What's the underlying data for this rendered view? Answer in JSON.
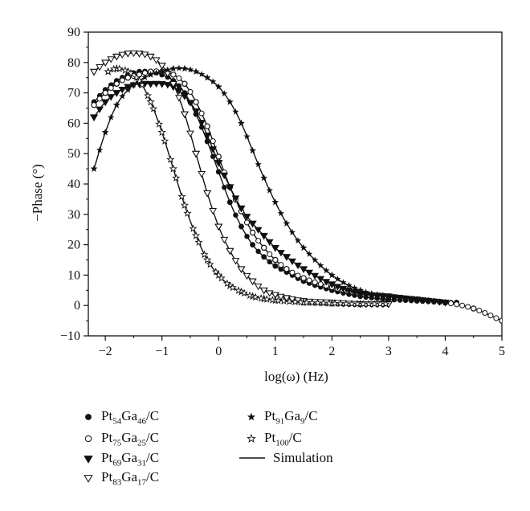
{
  "chart_data": {
    "type": "line",
    "title": "",
    "xlabel": "log(ω) (Hz)",
    "ylabel": "−Phase (°)",
    "xlim": [
      -2.3,
      5
    ],
    "ylim": [
      -10,
      90
    ],
    "xticks": [
      -2,
      -1,
      0,
      1,
      2,
      3,
      4,
      5
    ],
    "yticks": [
      -10,
      0,
      10,
      20,
      30,
      40,
      50,
      60,
      70,
      80,
      90
    ],
    "xtick_labels": [
      "−2",
      "−1",
      "0",
      "1",
      "2",
      "3",
      "4",
      "5"
    ],
    "ytick_labels": [
      "−10",
      "0",
      "10",
      "20",
      "30",
      "40",
      "50",
      "60",
      "70",
      "80",
      "90"
    ],
    "grid": false,
    "legend_placement": "below",
    "series": [
      {
        "name": "Pt54Ga46/C",
        "label_parts": [
          [
            "Pt",
            ""
          ],
          [
            "54",
            "sub"
          ],
          [
            "Ga",
            ""
          ],
          [
            "46",
            "sub"
          ],
          [
            "/C",
            ""
          ]
        ],
        "marker": "filled-circle",
        "x": [
          -2.2,
          -2.0,
          -1.8,
          -1.6,
          -1.4,
          -1.2,
          -1.0,
          -0.8,
          -0.6,
          -0.4,
          -0.2,
          0.0,
          0.2,
          0.4,
          0.6,
          0.8,
          1.0,
          1.2,
          1.5,
          2.0,
          2.5,
          3.0,
          3.5,
          4.0,
          4.2
        ],
        "y": [
          67,
          71,
          74,
          76,
          77,
          77,
          76,
          74,
          70,
          63,
          54,
          44,
          34,
          26,
          20,
          16,
          13,
          11,
          8,
          5,
          3,
          2,
          1.5,
          1,
          1
        ]
      },
      {
        "name": "Pt75Ga25/C",
        "label_parts": [
          [
            "Pt",
            ""
          ],
          [
            "75",
            "sub"
          ],
          [
            "Ga",
            ""
          ],
          [
            "25",
            "sub"
          ],
          [
            "/C",
            ""
          ]
        ],
        "marker": "open-circle",
        "x": [
          -2.2,
          -2.0,
          -1.8,
          -1.6,
          -1.4,
          -1.2,
          -1.0,
          -0.8,
          -0.6,
          -0.4,
          -0.2,
          0.0,
          0.2,
          0.4,
          0.6,
          0.8,
          1.0,
          1.2,
          1.5,
          2.0,
          2.5,
          3.0,
          3.5,
          4.0,
          4.5,
          5.0
        ],
        "y": [
          66,
          70,
          73,
          75,
          76,
          77,
          77,
          76,
          73,
          67,
          59,
          49,
          39,
          31,
          24,
          19,
          15,
          12,
          9,
          6,
          4,
          3,
          2,
          1,
          -1,
          -5
        ]
      },
      {
        "name": "Pt69Ga31/C",
        "label_parts": [
          [
            "Pt",
            ""
          ],
          [
            "69",
            "sub"
          ],
          [
            "Ga",
            ""
          ],
          [
            "31",
            "sub"
          ],
          [
            "/C",
            ""
          ]
        ],
        "marker": "filled-triangle-down",
        "x": [
          -2.2,
          -2.0,
          -1.8,
          -1.6,
          -1.4,
          -1.2,
          -1.0,
          -0.8,
          -0.6,
          -0.4,
          -0.2,
          0.0,
          0.2,
          0.4,
          0.6,
          0.8,
          1.0,
          1.2,
          1.5,
          2.0,
          2.5,
          3.0,
          3.5,
          4.0
        ],
        "y": [
          62,
          67,
          70,
          72,
          73,
          73,
          73,
          72,
          69,
          64,
          56,
          47,
          39,
          32,
          27,
          23,
          19,
          16,
          12,
          7,
          4,
          3,
          2,
          1
        ]
      },
      {
        "name": "Pt83Ga17/C",
        "label_parts": [
          [
            "Pt",
            ""
          ],
          [
            "83",
            "sub"
          ],
          [
            "Ga",
            ""
          ],
          [
            "17",
            "sub"
          ],
          [
            "/C",
            ""
          ]
        ],
        "marker": "open-triangle-down",
        "x": [
          -2.2,
          -2.0,
          -1.8,
          -1.6,
          -1.4,
          -1.2,
          -1.0,
          -0.8,
          -0.6,
          -0.4,
          -0.2,
          0.0,
          0.2,
          0.4,
          0.6,
          0.8,
          1.0,
          1.2,
          1.5,
          2.0,
          2.5,
          3.0
        ],
        "y": [
          77,
          80,
          82,
          83,
          83,
          82,
          79,
          73,
          63,
          50,
          37,
          26,
          18,
          12,
          8,
          5,
          3.5,
          2.5,
          1.5,
          1,
          0.5,
          0.5
        ]
      },
      {
        "name": "Pt91Ga9/C",
        "label_parts": [
          [
            "Pt",
            ""
          ],
          [
            "91",
            "sub"
          ],
          [
            "Ga",
            ""
          ],
          [
            "9",
            "sub"
          ],
          [
            "/C",
            ""
          ]
        ],
        "marker": "filled-star",
        "x": [
          -2.2,
          -2.0,
          -1.8,
          -1.6,
          -1.4,
          -1.2,
          -1.0,
          -0.8,
          -0.6,
          -0.4,
          -0.2,
          0.0,
          0.2,
          0.4,
          0.6,
          0.8,
          1.0,
          1.2,
          1.5,
          2.0,
          2.5,
          3.0,
          3.5,
          4.0
        ],
        "y": [
          45,
          57,
          66,
          71,
          74,
          76,
          77,
          78,
          78,
          77,
          75,
          72,
          67,
          60,
          51,
          42,
          34,
          27,
          19,
          10,
          5,
          3,
          2,
          1
        ]
      },
      {
        "name": "Pt100/C",
        "label_parts": [
          [
            "Pt",
            ""
          ],
          [
            "100",
            "sub"
          ],
          [
            "/C",
            ""
          ]
        ],
        "marker": "open-star",
        "x": [
          -1.95,
          -1.8,
          -1.6,
          -1.4,
          -1.2,
          -1.0,
          -0.8,
          -0.6,
          -0.4,
          -0.2,
          0.0,
          0.2,
          0.4,
          0.6,
          0.8,
          1.0,
          1.5,
          2.0,
          2.5,
          2.95
        ],
        "y": [
          77,
          78,
          77,
          74,
          67,
          57,
          45,
          33,
          23,
          15,
          10,
          6.5,
          4.5,
          3,
          2.2,
          1.7,
          1,
          0.7,
          0.5,
          0.5
        ]
      }
    ],
    "simulation": {
      "name": "Simulation",
      "style": "solid-line",
      "x": [
        -2.2,
        -2.0,
        -1.8,
        -1.6,
        -1.4,
        -1.2,
        -1.0,
        -0.8,
        -0.6,
        -0.4,
        -0.2,
        0.0,
        0.2,
        0.4,
        0.6,
        0.8,
        1.0,
        1.2,
        1.5,
        2.0,
        2.5,
        3.0,
        3.5,
        4.0,
        4.5,
        5.0
      ],
      "note_series": "one fitted curve per dataset"
    }
  }
}
